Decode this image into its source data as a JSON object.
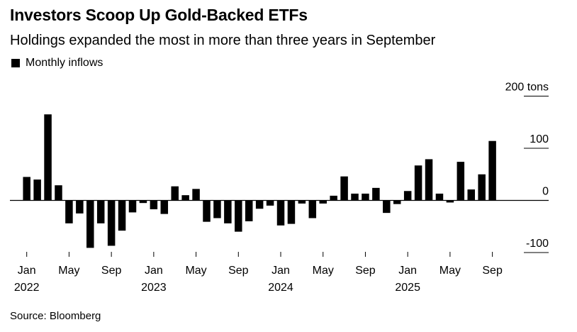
{
  "header": {
    "title": "Investors Scoop Up Gold-Backed ETFs",
    "subtitle": "Holdings expanded the most in more than three years in September"
  },
  "legend": {
    "label": "Monthly inflows"
  },
  "footer": {
    "source": "Source: Bloomberg"
  },
  "chart_data": {
    "type": "bar",
    "title": "Investors Scoop Up Gold-Backed ETFs",
    "subtitle": "Holdings expanded the most in more than three years in September",
    "series": [
      {
        "name": "Monthly inflows"
      }
    ],
    "ylim": [
      -100,
      200
    ],
    "yticks": [
      200,
      100,
      0,
      -100
    ],
    "y_unit": "tons",
    "xtick_labels": [
      {
        "month": "Jan",
        "year": "2022",
        "index": 0
      },
      {
        "month": "May",
        "year": "",
        "index": 4
      },
      {
        "month": "Sep",
        "year": "",
        "index": 8
      },
      {
        "month": "Jan",
        "year": "2023",
        "index": 12
      },
      {
        "month": "May",
        "year": "",
        "index": 16
      },
      {
        "month": "Sep",
        "year": "",
        "index": 20
      },
      {
        "month": "Jan",
        "year": "2024",
        "index": 24
      },
      {
        "month": "May",
        "year": "",
        "index": 28
      },
      {
        "month": "Sep",
        "year": "",
        "index": 32
      },
      {
        "month": "Jan",
        "year": "2025",
        "index": 36
      },
      {
        "month": "May",
        "year": "",
        "index": 40
      },
      {
        "month": "Sep",
        "year": "",
        "index": 44
      }
    ],
    "categories": [
      "2022-01",
      "2022-02",
      "2022-03",
      "2022-04",
      "2022-05",
      "2022-06",
      "2022-07",
      "2022-08",
      "2022-09",
      "2022-10",
      "2022-11",
      "2022-12",
      "2023-01",
      "2023-02",
      "2023-03",
      "2023-04",
      "2023-05",
      "2023-06",
      "2023-07",
      "2023-08",
      "2023-09",
      "2023-10",
      "2023-11",
      "2023-12",
      "2024-01",
      "2024-02",
      "2024-03",
      "2024-04",
      "2024-05",
      "2024-06",
      "2024-07",
      "2024-08",
      "2024-09",
      "2024-10",
      "2024-11",
      "2024-12",
      "2025-01",
      "2025-02",
      "2025-03",
      "2025-04",
      "2025-05",
      "2025-06",
      "2025-07",
      "2025-08",
      "2025-09"
    ],
    "values": [
      45,
      40,
      165,
      29,
      -44,
      -25,
      -91,
      -44,
      -87,
      -58,
      -23,
      -5,
      -17,
      -26,
      27,
      10,
      22,
      -41,
      -34,
      -44,
      -60,
      -40,
      -16,
      -10,
      -48,
      -45,
      -6,
      -34,
      -6,
      9,
      46,
      13,
      13,
      24,
      -24,
      -7,
      18,
      67,
      79,
      13,
      -4,
      74,
      21,
      50,
      114
    ]
  },
  "colors": {
    "bar": "#000000",
    "axis": "#000000",
    "background": "#ffffff"
  }
}
